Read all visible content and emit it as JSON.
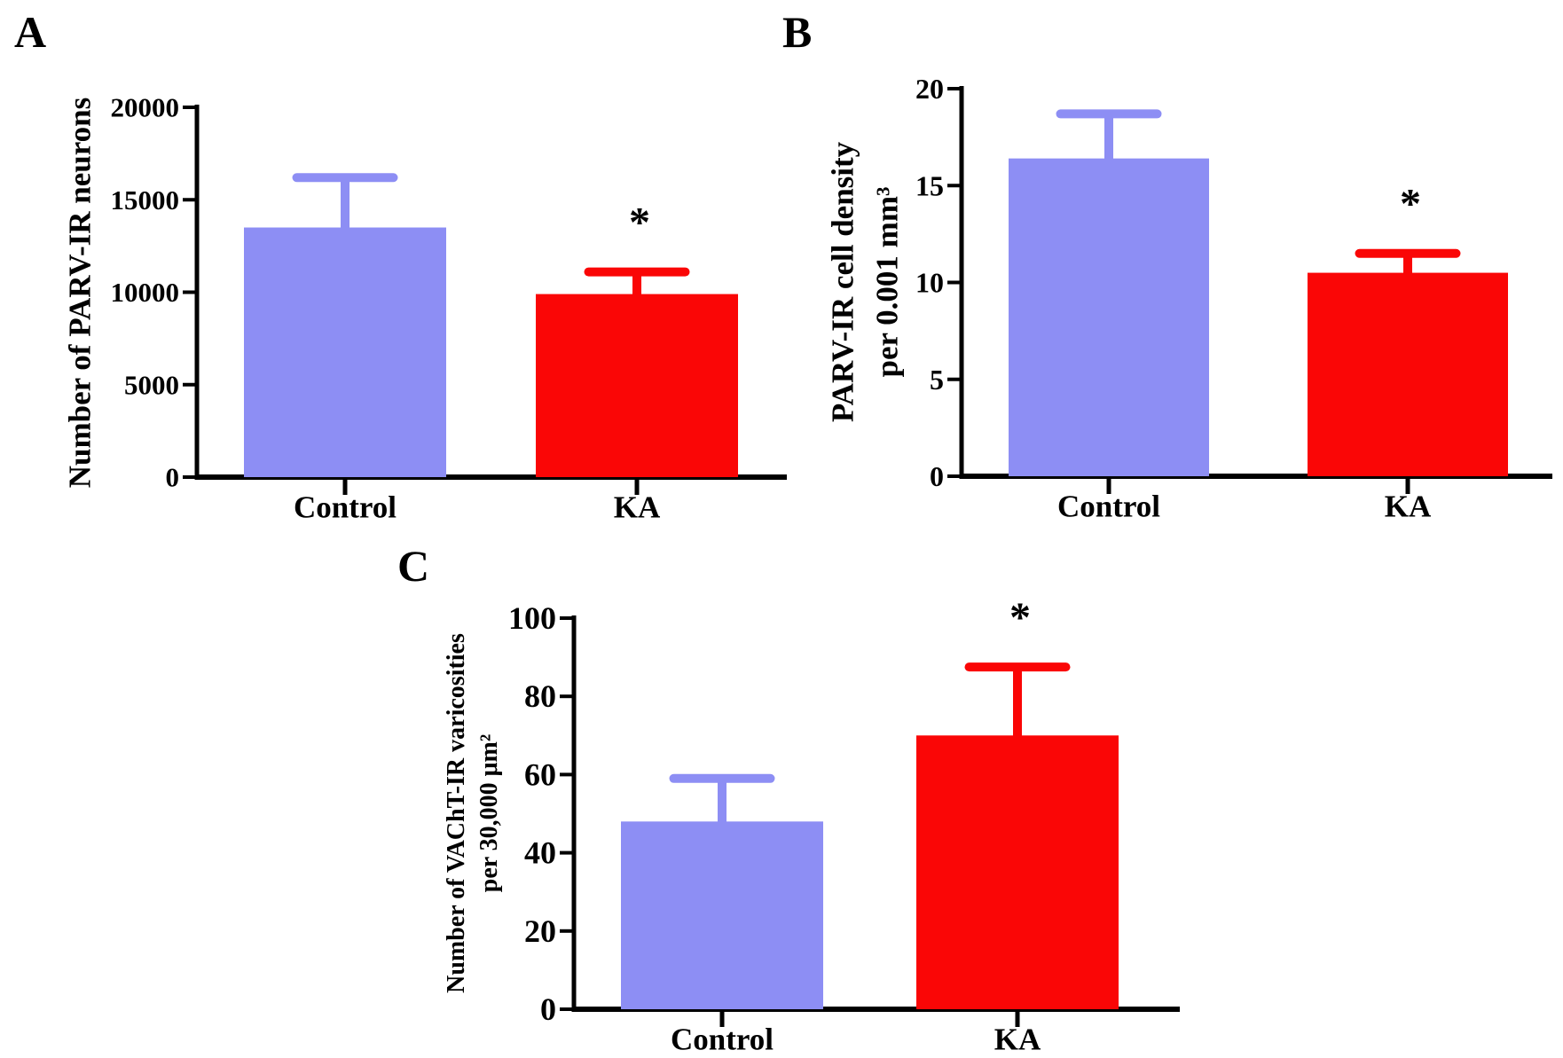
{
  "figure": {
    "description": "Three-panel bar figure comparing Control vs KA groups with upper error bars and significance asterisks",
    "background": "#ffffff",
    "significance_marker": "*",
    "colors": {
      "control_bar": "#8d8ef4",
      "ka_bar": "#fa0606",
      "axis": "#000000",
      "text": "#000000"
    }
  },
  "chart_data": [
    {
      "type": "bar",
      "panel_label": "A",
      "title": "",
      "xlabel": "",
      "ylabel": "Number of PARV-IR neurons",
      "ylabel_lines": [
        "Number of PARV-IR neurons"
      ],
      "categories": [
        "Control",
        "KA"
      ],
      "values": [
        13500,
        9900
      ],
      "errors_plus": [
        2700,
        1200
      ],
      "error_caps_at": [
        16200,
        11100
      ],
      "bar_colors": [
        "#8d8ef4",
        "#fa0606"
      ],
      "significance": [
        "",
        "*"
      ],
      "ylim": [
        0,
        20000
      ],
      "yticks": [
        0,
        5000,
        10000,
        15000,
        20000
      ],
      "ytick_labels": [
        "0",
        "5000",
        "10000",
        "15000",
        "20000"
      ],
      "grid": false,
      "legend": "none",
      "error_bar_style": "upper-only, cap colored as bar"
    },
    {
      "type": "bar",
      "panel_label": "B",
      "title": "",
      "xlabel": "",
      "ylabel": "PARV-IR cell density per 0.001 mm³",
      "ylabel_lines": [
        "PARV-IR cell density",
        "per 0.001 mm³"
      ],
      "categories": [
        "Control",
        "KA"
      ],
      "values": [
        16.4,
        10.5
      ],
      "errors_plus": [
        2.3,
        1.0
      ],
      "error_caps_at": [
        18.7,
        11.5
      ],
      "bar_colors": [
        "#8d8ef4",
        "#fa0606"
      ],
      "significance": [
        "",
        "*"
      ],
      "ylim": [
        0,
        20
      ],
      "yticks": [
        0,
        5,
        10,
        15,
        20
      ],
      "ytick_labels": [
        "0",
        "5",
        "10",
        "15",
        "20"
      ],
      "grid": false,
      "legend": "none",
      "error_bar_style": "upper-only, cap colored as bar"
    },
    {
      "type": "bar",
      "panel_label": "C",
      "title": "",
      "xlabel": "",
      "ylabel": "Number of VAChT-IR varicosities per 30,000 μm²",
      "ylabel_lines": [
        "Number of VAChT-IR varicosities",
        "per 30,000 μm²"
      ],
      "categories": [
        "Control",
        "KA"
      ],
      "values": [
        48,
        70
      ],
      "errors_plus": [
        11,
        17.5
      ],
      "error_caps_at": [
        59,
        87.5
      ],
      "bar_colors": [
        "#8d8ef4",
        "#fa0606"
      ],
      "significance": [
        "",
        "*"
      ],
      "ylim": [
        0,
        100
      ],
      "yticks": [
        0,
        20,
        40,
        60,
        80,
        100
      ],
      "ytick_labels": [
        "0",
        "20",
        "40",
        "60",
        "80",
        "100"
      ],
      "grid": false,
      "legend": "none",
      "error_bar_style": "upper-only, cap colored as bar"
    }
  ]
}
